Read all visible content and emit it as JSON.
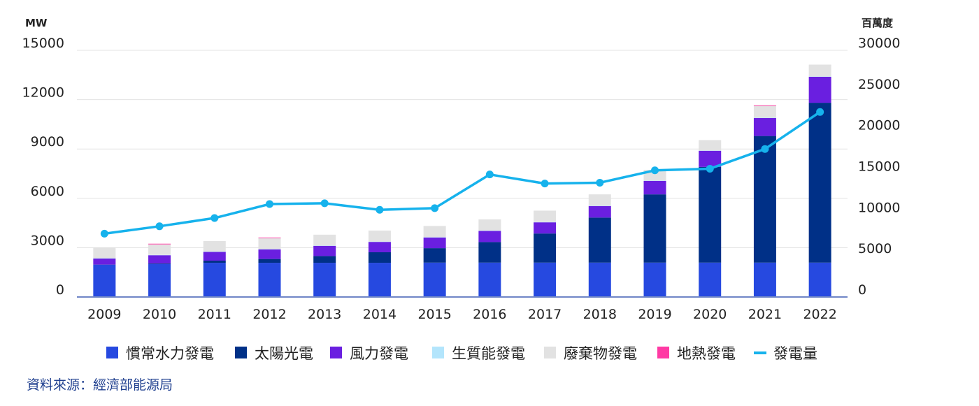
{
  "chart_data": {
    "type": "bar",
    "stacked": true,
    "categories": [
      "2009",
      "2010",
      "2011",
      "2012",
      "2013",
      "2014",
      "2015",
      "2016",
      "2017",
      "2018",
      "2019",
      "2020",
      "2021",
      "2022"
    ],
    "left_axis": {
      "unit": "MW",
      "range": [
        0,
        15000
      ],
      "ticks": [
        0,
        3000,
        6000,
        9000,
        12000,
        15000
      ],
      "tick_labels": [
        "0",
        "3000",
        "6000",
        "9000",
        "12000",
        "15000"
      ]
    },
    "right_axis": {
      "unit": "百萬度",
      "range": [
        0,
        30000
      ],
      "ticks": [
        0,
        5000,
        10000,
        15000,
        20000,
        25000,
        30000
      ],
      "tick_labels": [
        "0",
        "5000",
        "10000",
        "15000",
        "20000",
        "25000",
        "30000"
      ]
    },
    "series": [
      {
        "name": "慣常水力發電",
        "kind": "bar",
        "color": "#2649e0",
        "values": [
          1960,
          2010,
          2080,
          2080,
          2080,
          2080,
          2090,
          2090,
          2090,
          2090,
          2090,
          2090,
          2090,
          2090
        ]
      },
      {
        "name": "太陽光電",
        "kind": "bar",
        "color": "#003087",
        "values": [
          10,
          30,
          130,
          230,
          410,
          640,
          880,
          1250,
          1770,
          2740,
          4150,
          5820,
          7700,
          9720
        ]
      },
      {
        "name": "風力發電",
        "kind": "bar",
        "color": "#6a1fe0",
        "values": [
          370,
          500,
          530,
          580,
          620,
          630,
          650,
          680,
          680,
          700,
          820,
          980,
          1090,
          1580
        ]
      },
      {
        "name": "生質能發電",
        "kind": "bar",
        "color": "#b3e5fc",
        "values": [
          20,
          20,
          20,
          20,
          20,
          20,
          20,
          20,
          20,
          20,
          20,
          20,
          20,
          20
        ]
      },
      {
        "name": "廢棄物發電",
        "kind": "bar",
        "color": "#e2e2e2",
        "values": [
          640,
          640,
          640,
          660,
          660,
          670,
          680,
          680,
          690,
          690,
          650,
          630,
          720,
          720
        ]
      },
      {
        "name": "地熱發電",
        "kind": "bar",
        "color": "#ff3aa4",
        "values": [
          0,
          40,
          0,
          40,
          0,
          0,
          0,
          0,
          0,
          0,
          0,
          0,
          40,
          0
        ]
      },
      {
        "name": "發電量",
        "kind": "line",
        "axis": "right",
        "color": "#16b2ec",
        "values": [
          7700,
          8600,
          9600,
          11300,
          11400,
          10600,
          10800,
          14900,
          13800,
          13900,
          15400,
          15600,
          18000,
          22500
        ]
      }
    ],
    "source": "資料來源：經濟部能源局"
  }
}
